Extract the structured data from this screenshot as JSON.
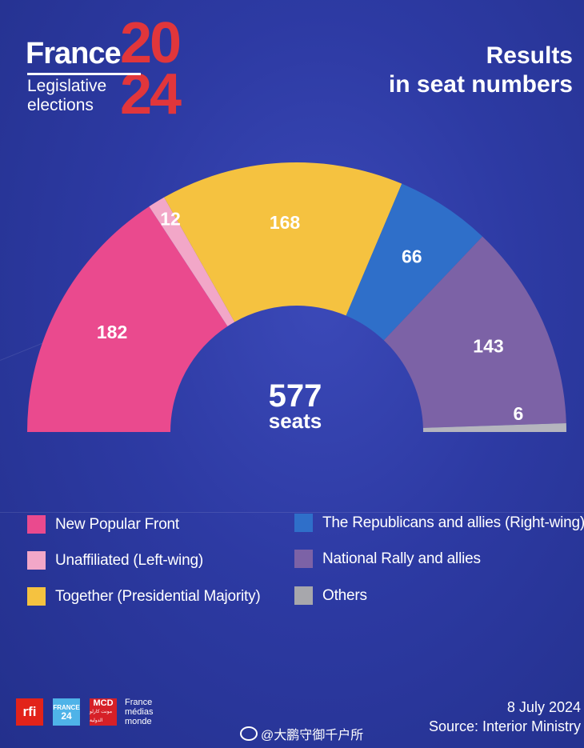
{
  "logo": {
    "word": "France",
    "year_top": "20",
    "year_bottom": "24",
    "sub_line1": "Legislative",
    "sub_line2": "elections"
  },
  "title": {
    "line1": "Results",
    "line2": "in seat numbers"
  },
  "chart_data": {
    "type": "pie",
    "subtype": "hemicycle",
    "total": 577,
    "total_label": "seats",
    "categories": [
      "New Popular Front",
      "Unaffiliated (Left-wing)",
      "Together (Presidential Majority)",
      "The Republicans and allies (Right-wing)",
      "National Rally and allies",
      "Others"
    ],
    "values": [
      182,
      12,
      168,
      66,
      143,
      6
    ],
    "colors": [
      "#ea4a8e",
      "#f2a7c8",
      "#f5c240",
      "#2f6fc9",
      "#7c62a6",
      "#b5b5be"
    ],
    "legend_position": "bottom"
  },
  "legend": {
    "items": [
      {
        "label": "New Popular Front",
        "color": "#ea4a8e"
      },
      {
        "label": "Unaffiliated (Left-wing)",
        "color": "#f2a7c8"
      },
      {
        "label": "Together (Presidential Majority)",
        "color": "#f5c240"
      },
      {
        "label": "The Republicans and allies (Right-wing)",
        "color": "#2f6fc9"
      },
      {
        "label": "National Rally and allies",
        "color": "#7c62a6"
      },
      {
        "label": "Others",
        "color": "#a7a7ac"
      }
    ]
  },
  "footer": {
    "date": "8 July 2024",
    "source": "Source: Interior Ministry",
    "logo_rfi": "rfi",
    "logo_f24_line1": "FRANCE",
    "logo_f24_line2": "24",
    "logo_mcd": "MCD",
    "logo_mcd_sub": "مونت كارلو الدولية",
    "fmm_line1": "France",
    "fmm_line2": "médias",
    "fmm_line3": "monde",
    "watermark": "@大鹏守御千户所"
  }
}
